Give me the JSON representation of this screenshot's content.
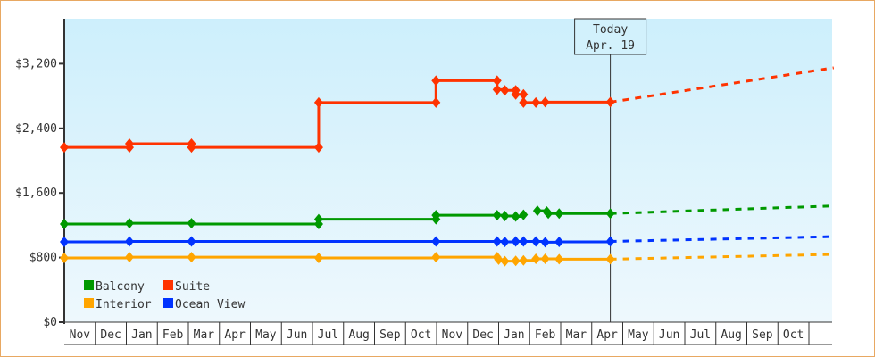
{
  "chart_data": {
    "type": "line",
    "title": "",
    "xlabel": "",
    "ylabel": "",
    "ylim": [
      0,
      3600
    ],
    "y_ticks": [
      {
        "value": 0,
        "label": "$0"
      },
      {
        "value": 800,
        "label": "$800"
      },
      {
        "value": 1600,
        "label": "$1,600"
      },
      {
        "value": 2400,
        "label": "$2,400"
      },
      {
        "value": 3200,
        "label": "$3,200"
      }
    ],
    "x_months": [
      "Nov",
      "Dec",
      "Jan",
      "Feb",
      "Mar",
      "Apr",
      "May",
      "Jun",
      "Jul",
      "Aug",
      "Sep",
      "Oct",
      "Nov",
      "Dec",
      "Jan",
      "Feb",
      "Mar",
      "Apr",
      "May",
      "Jun",
      "Jul",
      "Aug",
      "Sep",
      "Oct"
    ],
    "x_unit": "month index from start of first Nov",
    "today_marker": {
      "line1": "Today",
      "line2": "Apr. 19",
      "x": 17.6
    },
    "legend": [
      {
        "name": "Balcony",
        "color": "#009900"
      },
      {
        "name": "Suite",
        "color": "#ff3300"
      },
      {
        "name": "Interior",
        "color": "#ffa500"
      },
      {
        "name": "Ocean View",
        "color": "#0033ff"
      }
    ],
    "series": [
      {
        "name": "Suite",
        "color": "#ff3300",
        "step_points": [
          [
            0,
            2165
          ],
          [
            2.1,
            2165
          ],
          [
            2.1,
            2210
          ],
          [
            4.1,
            2210
          ],
          [
            4.1,
            2165
          ],
          [
            8.2,
            2165
          ],
          [
            8.2,
            2720
          ],
          [
            11.98,
            2720
          ],
          [
            11.98,
            2990
          ],
          [
            13.95,
            2990
          ],
          [
            13.95,
            2880
          ],
          [
            14.2,
            2870
          ],
          [
            14.55,
            2870
          ],
          [
            14.55,
            2820
          ],
          [
            14.8,
            2820
          ],
          [
            14.8,
            2720
          ],
          [
            15.2,
            2720
          ],
          [
            15.5,
            2725
          ],
          [
            17.6,
            2725
          ]
        ],
        "markers": [
          [
            0,
            2165
          ],
          [
            2.1,
            2165
          ],
          [
            2.1,
            2210
          ],
          [
            4.1,
            2210
          ],
          [
            4.1,
            2165
          ],
          [
            8.2,
            2165
          ],
          [
            8.2,
            2720
          ],
          [
            11.98,
            2720
          ],
          [
            11.98,
            2990
          ],
          [
            13.95,
            2990
          ],
          [
            13.95,
            2880
          ],
          [
            14.2,
            2870
          ],
          [
            14.55,
            2870
          ],
          [
            14.55,
            2820
          ],
          [
            14.8,
            2820
          ],
          [
            14.8,
            2720
          ],
          [
            15.2,
            2720
          ],
          [
            15.5,
            2725
          ],
          [
            17.6,
            2725
          ]
        ],
        "projection": [
          [
            17.6,
            2725
          ],
          [
            24.8,
            3150
          ]
        ]
      },
      {
        "name": "Balcony",
        "color": "#009900",
        "step_points": [
          [
            0,
            1215
          ],
          [
            2.1,
            1215
          ],
          [
            2.1,
            1225
          ],
          [
            4.1,
            1225
          ],
          [
            4.1,
            1215
          ],
          [
            8.2,
            1215
          ],
          [
            8.2,
            1275
          ],
          [
            11.98,
            1275
          ],
          [
            11.98,
            1325
          ],
          [
            13.95,
            1325
          ],
          [
            14.2,
            1315
          ],
          [
            14.55,
            1310
          ],
          [
            14.8,
            1330
          ]
        ],
        "step_points_2": [
          [
            15.25,
            1380
          ],
          [
            15.55,
            1370
          ],
          [
            15.6,
            1345
          ],
          [
            15.95,
            1345
          ],
          [
            17.6,
            1345
          ]
        ],
        "markers": [
          [
            0,
            1215
          ],
          [
            2.1,
            1225
          ],
          [
            4.1,
            1225
          ],
          [
            8.2,
            1215
          ],
          [
            8.2,
            1275
          ],
          [
            11.98,
            1275
          ],
          [
            11.98,
            1325
          ],
          [
            13.95,
            1325
          ],
          [
            14.2,
            1315
          ],
          [
            14.55,
            1310
          ],
          [
            14.8,
            1330
          ],
          [
            15.25,
            1380
          ],
          [
            15.55,
            1370
          ],
          [
            15.6,
            1345
          ],
          [
            15.95,
            1345
          ],
          [
            17.6,
            1345
          ]
        ],
        "projection": [
          [
            17.6,
            1345
          ],
          [
            24.8,
            1440
          ]
        ]
      },
      {
        "name": "Ocean View",
        "color": "#0033ff",
        "step_points": [
          [
            0,
            995
          ],
          [
            2.1,
            1000
          ],
          [
            4.1,
            1000
          ],
          [
            11.98,
            1000
          ],
          [
            13.95,
            1000
          ],
          [
            14.2,
            995
          ],
          [
            14.55,
            1000
          ],
          [
            14.8,
            1000
          ],
          [
            15.2,
            1000
          ],
          [
            15.5,
            990
          ],
          [
            15.95,
            995
          ],
          [
            17.6,
            1000
          ]
        ],
        "markers": [
          [
            0,
            995
          ],
          [
            2.1,
            1000
          ],
          [
            4.1,
            1000
          ],
          [
            11.98,
            1000
          ],
          [
            13.95,
            1000
          ],
          [
            14.2,
            995
          ],
          [
            14.55,
            1000
          ],
          [
            14.8,
            1000
          ],
          [
            15.2,
            1000
          ],
          [
            15.5,
            990
          ],
          [
            15.95,
            995
          ],
          [
            17.6,
            1000
          ]
        ],
        "projection": [
          [
            17.6,
            1000
          ],
          [
            24.8,
            1060
          ]
        ]
      },
      {
        "name": "Interior",
        "color": "#ffa500",
        "step_points": [
          [
            0,
            795
          ],
          [
            2.1,
            805
          ],
          [
            4.1,
            805
          ],
          [
            8.2,
            795
          ],
          [
            11.98,
            805
          ],
          [
            13.95,
            805
          ],
          [
            14.0,
            775
          ],
          [
            14.2,
            755
          ],
          [
            14.55,
            760
          ],
          [
            14.8,
            765
          ],
          [
            15.2,
            785
          ],
          [
            15.5,
            785
          ],
          [
            15.95,
            780
          ],
          [
            17.6,
            780
          ]
        ],
        "markers": [
          [
            0,
            795
          ],
          [
            2.1,
            805
          ],
          [
            4.1,
            805
          ],
          [
            8.2,
            795
          ],
          [
            11.98,
            805
          ],
          [
            13.95,
            805
          ],
          [
            14.0,
            775
          ],
          [
            14.2,
            755
          ],
          [
            14.55,
            760
          ],
          [
            14.8,
            765
          ],
          [
            15.2,
            785
          ],
          [
            15.5,
            785
          ],
          [
            15.95,
            780
          ],
          [
            17.6,
            780
          ]
        ],
        "projection": [
          [
            17.6,
            780
          ],
          [
            24.8,
            840
          ]
        ]
      }
    ]
  }
}
